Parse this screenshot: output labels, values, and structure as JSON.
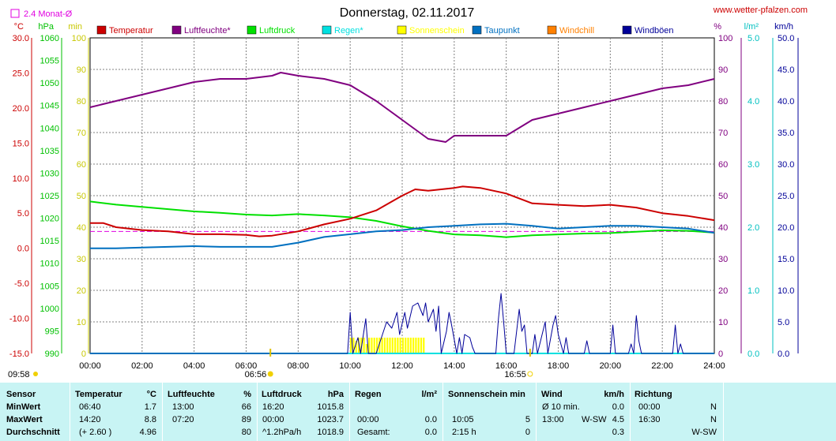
{
  "header": {
    "title": "Donnerstag, 02.11.2017",
    "website": "www.wetter-pfalzen.com",
    "monthly_avg_label": "2.4 Monat-Ø",
    "sunrise_time": "06:56",
    "sunset_time": "16:55",
    "left_corner_time": "09:58"
  },
  "colors": {
    "temperature": "#cc0000",
    "humidity": "#800080",
    "pressure": "#00e000",
    "rain": "#00e0e0",
    "sunshine": "#ffff00",
    "dewpoint": "#0070c0",
    "windchill": "#ff8000",
    "gusts": "#000099",
    "monthly_avg": "#e000e0"
  },
  "legend": [
    {
      "name": "Temperatur",
      "color": "#cc0000"
    },
    {
      "name": "Luftfeuchte*",
      "color": "#800080"
    },
    {
      "name": "Luftdruck",
      "color": "#00e000"
    },
    {
      "name": "Regen*",
      "color": "#00e0e0"
    },
    {
      "name": "Sonnenschein",
      "color": "#ffff00"
    },
    {
      "name": "Taupunkt",
      "color": "#0070c0"
    },
    {
      "name": "Windchill",
      "color": "#ff8000"
    },
    {
      "name": "Windböen",
      "color": "#000099"
    }
  ],
  "axes": {
    "temp": {
      "unit": "°C",
      "ticks": [
        "30.0",
        "25.0",
        "20.0",
        "15.0",
        "10.0",
        "5.0",
        "0.0",
        "-5.0",
        "-10.0",
        "-15.0"
      ]
    },
    "pressure": {
      "unit": "hPa",
      "ticks": [
        "1060",
        "1055",
        "1050",
        "1045",
        "1040",
        "1035",
        "1030",
        "1025",
        "1020",
        "1015",
        "1010",
        "1005",
        "1000",
        "995",
        "990"
      ]
    },
    "minutes": {
      "unit": "min",
      "ticks": [
        "100",
        "90",
        "80",
        "70",
        "60",
        "50",
        "40",
        "30",
        "20",
        "10",
        "0"
      ]
    },
    "humidity": {
      "unit": "%",
      "ticks": [
        "100",
        "90",
        "80",
        "70",
        "60",
        "50",
        "40",
        "30",
        "20",
        "10",
        "0"
      ]
    },
    "rain": {
      "unit": "l/m²",
      "ticks": [
        "5.0",
        "4.0",
        "3.0",
        "2.0",
        "1.0",
        "0.0"
      ]
    },
    "wind": {
      "unit": "km/h",
      "ticks": [
        "50.0",
        "45.0",
        "40.0",
        "35.0",
        "30.0",
        "25.0",
        "20.0",
        "15.0",
        "10.0",
        "5.0",
        "0.0"
      ]
    },
    "x_ticks": [
      "00:00",
      "02:00",
      "04:00",
      "06:00",
      "08:00",
      "10:00",
      "12:00",
      "14:00",
      "16:00",
      "18:00",
      "20:00",
      "22:00",
      "24:00"
    ]
  },
  "chart_data": {
    "type": "line",
    "title": "Donnerstag, 02.11.2017",
    "x_range_hours": [
      0,
      24
    ],
    "monthly_avg_temp": 2.4,
    "series": [
      {
        "name": "Temperatur",
        "axis": "temp",
        "points": [
          [
            0,
            3.6
          ],
          [
            0.5,
            3.6
          ],
          [
            1,
            3.0
          ],
          [
            2,
            2.6
          ],
          [
            3,
            2.4
          ],
          [
            4,
            2.0
          ],
          [
            5,
            2.0
          ],
          [
            6,
            1.9
          ],
          [
            6.5,
            1.7
          ],
          [
            7,
            1.8
          ],
          [
            8,
            2.4
          ],
          [
            9,
            3.4
          ],
          [
            10,
            4.2
          ],
          [
            11,
            5.4
          ],
          [
            12,
            7.5
          ],
          [
            12.5,
            8.4
          ],
          [
            13,
            8.2
          ],
          [
            14,
            8.6
          ],
          [
            14.33,
            8.8
          ],
          [
            15,
            8.6
          ],
          [
            16,
            7.8
          ],
          [
            17,
            6.4
          ],
          [
            18,
            6.2
          ],
          [
            19,
            6.0
          ],
          [
            20,
            6.2
          ],
          [
            21,
            5.8
          ],
          [
            22,
            5.0
          ],
          [
            23,
            4.6
          ],
          [
            24,
            4.0
          ]
        ]
      },
      {
        "name": "Taupunkt",
        "axis": "temp",
        "points": [
          [
            0,
            0.0
          ],
          [
            1,
            0.0
          ],
          [
            2,
            0.1
          ],
          [
            3,
            0.2
          ],
          [
            4,
            0.3
          ],
          [
            5,
            0.2
          ],
          [
            6,
            0.2
          ],
          [
            7,
            0.2
          ],
          [
            8,
            0.8
          ],
          [
            9,
            1.6
          ],
          [
            10,
            2.0
          ],
          [
            11,
            2.4
          ],
          [
            12,
            2.6
          ],
          [
            13,
            3.0
          ],
          [
            14,
            3.2
          ],
          [
            15,
            3.4
          ],
          [
            16,
            3.5
          ],
          [
            17,
            3.2
          ],
          [
            18,
            2.8
          ],
          [
            19,
            3.0
          ],
          [
            20,
            3.2
          ],
          [
            21,
            3.2
          ],
          [
            22,
            3.0
          ],
          [
            23,
            2.8
          ],
          [
            24,
            2.2
          ]
        ]
      },
      {
        "name": "Luftfeuchte*",
        "axis": "humidity",
        "points": [
          [
            0,
            78
          ],
          [
            1,
            80
          ],
          [
            2,
            82
          ],
          [
            3,
            84
          ],
          [
            4,
            86
          ],
          [
            5,
            87
          ],
          [
            6,
            87
          ],
          [
            7,
            88
          ],
          [
            7.33,
            89
          ],
          [
            8,
            88
          ],
          [
            9,
            87
          ],
          [
            10,
            85
          ],
          [
            11,
            80
          ],
          [
            12,
            74
          ],
          [
            13,
            68
          ],
          [
            13.67,
            67
          ],
          [
            14,
            69
          ],
          [
            15,
            69
          ],
          [
            16,
            69
          ],
          [
            17,
            74
          ],
          [
            18,
            76
          ],
          [
            19,
            78
          ],
          [
            20,
            80
          ],
          [
            21,
            82
          ],
          [
            22,
            84
          ],
          [
            23,
            85
          ],
          [
            24,
            87
          ]
        ]
      },
      {
        "name": "Luftdruck",
        "axis": "pressure",
        "points": [
          [
            0,
            1023.7
          ],
          [
            1,
            1023.0
          ],
          [
            2,
            1022.5
          ],
          [
            3,
            1022.0
          ],
          [
            4,
            1021.5
          ],
          [
            5,
            1021.2
          ],
          [
            6,
            1020.8
          ],
          [
            7,
            1020.6
          ],
          [
            8,
            1020.9
          ],
          [
            9,
            1020.6
          ],
          [
            10,
            1020.2
          ],
          [
            11,
            1019.4
          ],
          [
            12,
            1018.2
          ],
          [
            13,
            1017.2
          ],
          [
            14,
            1016.4
          ],
          [
            15,
            1016.2
          ],
          [
            16,
            1015.8
          ],
          [
            17,
            1016.2
          ],
          [
            18,
            1016.4
          ],
          [
            19,
            1016.6
          ],
          [
            20,
            1016.7
          ],
          [
            21,
            1017.0
          ],
          [
            22,
            1017.3
          ],
          [
            23,
            1017.2
          ],
          [
            24,
            1016.8
          ]
        ]
      },
      {
        "name": "Windböen",
        "axis": "wind",
        "points": [
          [
            0,
            0
          ],
          [
            9.9,
            0
          ],
          [
            10.0,
            6.5
          ],
          [
            10.1,
            0
          ],
          [
            10.3,
            2.5
          ],
          [
            10.4,
            0
          ],
          [
            10.6,
            5.5
          ],
          [
            10.7,
            0
          ],
          [
            11,
            0
          ],
          [
            11.2,
            2.5
          ],
          [
            11.4,
            5
          ],
          [
            11.6,
            4
          ],
          [
            11.8,
            6.5
          ],
          [
            11.9,
            3
          ],
          [
            12.1,
            6.5
          ],
          [
            12.2,
            4
          ],
          [
            12.4,
            7.5
          ],
          [
            12.6,
            8
          ],
          [
            12.8,
            6
          ],
          [
            12.9,
            8
          ],
          [
            13.0,
            5
          ],
          [
            13.2,
            7
          ],
          [
            13.3,
            3.5
          ],
          [
            13.4,
            7.5
          ],
          [
            13.5,
            0
          ],
          [
            13.7,
            3.5
          ],
          [
            13.8,
            6.5
          ],
          [
            13.9,
            4.5
          ],
          [
            14.1,
            0
          ],
          [
            14.2,
            2.5
          ],
          [
            14.3,
            0
          ],
          [
            14.4,
            3
          ],
          [
            14.6,
            2.5
          ],
          [
            14.7,
            1
          ],
          [
            14.8,
            0
          ],
          [
            15.6,
            0
          ],
          [
            15.7,
            5.5
          ],
          [
            15.8,
            9.5
          ],
          [
            15.9,
            5
          ],
          [
            16.0,
            0
          ],
          [
            16.3,
            0
          ],
          [
            16.5,
            7
          ],
          [
            16.6,
            3.5
          ],
          [
            16.7,
            4.5
          ],
          [
            16.8,
            0
          ],
          [
            17.0,
            0
          ],
          [
            17.1,
            3
          ],
          [
            17.2,
            0
          ],
          [
            17.5,
            5
          ],
          [
            17.6,
            0
          ],
          [
            17.8,
            4.5
          ],
          [
            17.9,
            6
          ],
          [
            18.0,
            3
          ],
          [
            18.2,
            0
          ],
          [
            18.3,
            2.5
          ],
          [
            18.4,
            0
          ],
          [
            19.0,
            0
          ],
          [
            19.1,
            2
          ],
          [
            19.2,
            0
          ],
          [
            20.0,
            0
          ],
          [
            20.1,
            4.5
          ],
          [
            20.2,
            0
          ],
          [
            20.7,
            0
          ],
          [
            20.8,
            1.5
          ],
          [
            20.9,
            0
          ],
          [
            21.0,
            6
          ],
          [
            21.1,
            2
          ],
          [
            21.2,
            0
          ],
          [
            22.4,
            0
          ],
          [
            22.5,
            4.5
          ],
          [
            22.6,
            0
          ],
          [
            22.7,
            1.5
          ],
          [
            22.8,
            0
          ],
          [
            24,
            0
          ]
        ]
      },
      {
        "name": "Regen*",
        "axis": "rain",
        "points": [
          [
            0,
            0
          ],
          [
            24,
            0
          ]
        ]
      }
    ],
    "sunshine_minutes": [
      [
        10.05,
        5
      ],
      [
        10.15,
        5
      ],
      [
        10.25,
        4
      ],
      [
        10.35,
        5
      ],
      [
        10.45,
        5
      ],
      [
        10.55,
        5
      ],
      [
        10.65,
        3
      ],
      [
        10.75,
        5
      ],
      [
        10.85,
        5
      ],
      [
        10.95,
        5
      ],
      [
        11.05,
        5
      ],
      [
        11.15,
        5
      ],
      [
        11.25,
        5
      ],
      [
        11.35,
        5
      ],
      [
        11.45,
        5
      ],
      [
        11.55,
        5
      ],
      [
        11.65,
        5
      ],
      [
        11.75,
        5
      ],
      [
        11.85,
        5
      ],
      [
        11.95,
        5
      ],
      [
        12.05,
        5
      ],
      [
        12.15,
        5
      ],
      [
        12.25,
        5
      ],
      [
        12.35,
        5
      ],
      [
        12.45,
        5
      ],
      [
        12.55,
        5
      ],
      [
        12.65,
        5
      ],
      [
        12.75,
        5
      ],
      [
        12.85,
        5
      ]
    ],
    "sunrise_hours": 6.933,
    "sunset_hours": 16.917
  },
  "stats": {
    "headers": {
      "sensor": "Sensor",
      "temp": "Temperatur",
      "temp_unit": "°C",
      "hum": "Luftfeuchte",
      "hum_unit": "%",
      "press": "Luftdruck",
      "press_unit": "hPa",
      "rain": "Regen",
      "rain_unit": "l/m²",
      "sun": "Sonnenschein min",
      "wind": "Wind",
      "wind_unit": "km/h",
      "dir": "Richtung"
    },
    "rows": [
      {
        "label": "MinWert",
        "temp_time": "06:40",
        "temp_val": "1.7",
        "hum_time": "13:00",
        "hum_val": "66",
        "press_time": "16:20",
        "press_val": "1015.8",
        "rain_time": "",
        "rain_val": "",
        "sun_time": "",
        "sun_val": "",
        "wind_time": "Ø 10 min.",
        "wind_dir": "",
        "wind_val": "0.0",
        "dir_time": "00:00",
        "dir_val": "N"
      },
      {
        "label": "MaxWert",
        "temp_time": "14:20",
        "temp_val": "8.8",
        "hum_time": "07:20",
        "hum_val": "89",
        "press_time": "00:00",
        "press_val": "1023.7",
        "rain_time": "00:00",
        "rain_val": "0.0",
        "sun_time": "10:05",
        "sun_val": "5",
        "wind_time": "13:00",
        "wind_dir": "W-SW",
        "wind_val": "4.5",
        "dir_time": "16:30",
        "dir_val": "N"
      },
      {
        "label": "Durchschnitt",
        "temp_time": "(+ 2.60 )",
        "temp_val": "4.96",
        "hum_time": "",
        "hum_val": "80",
        "press_time": "^1.2hPa/h",
        "press_val": "1018.9",
        "rain_time": "Gesamt:",
        "rain_val": "0.0",
        "sun_time": "2:15 h",
        "sun_val": "0",
        "wind_time": "",
        "wind_dir": "",
        "wind_val": "0.3",
        "dir_time": "",
        "dir_val": "W-SW"
      }
    ]
  }
}
